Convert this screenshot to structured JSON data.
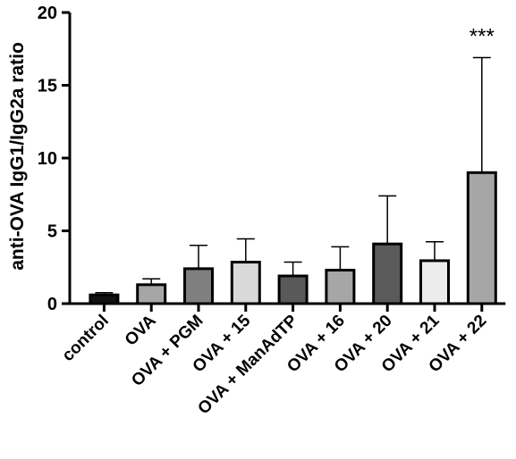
{
  "chart_data": {
    "type": "bar",
    "title": "",
    "xlabel": "",
    "ylabel": "anti-OVA IgG1/IgG2a ratio",
    "ylim": [
      0,
      20
    ],
    "yticks": [
      0,
      5,
      10,
      15,
      20
    ],
    "grid": false,
    "categories": [
      "control",
      "OVA",
      "OVA + PGM",
      "OVA + 15",
      "OVA + ManAdTP",
      "OVA + 16",
      "OVA + 20",
      "OVA + 21",
      "OVA + 22"
    ],
    "values": [
      0.6,
      1.3,
      2.4,
      2.85,
      1.9,
      2.3,
      4.1,
      2.95,
      9.0
    ],
    "error_upper": [
      0.15,
      0.4,
      1.6,
      1.6,
      0.95,
      1.6,
      3.3,
      1.3,
      7.9
    ],
    "bar_colors": [
      "#111111",
      "#a6a6a6",
      "#7f7f7f",
      "#d9d9d9",
      "#595959",
      "#a6a6a6",
      "#5a5a5a",
      "#ececec",
      "#a6a6a6"
    ],
    "annotations": [
      {
        "category": "OVA + 22",
        "text": "***"
      }
    ]
  }
}
